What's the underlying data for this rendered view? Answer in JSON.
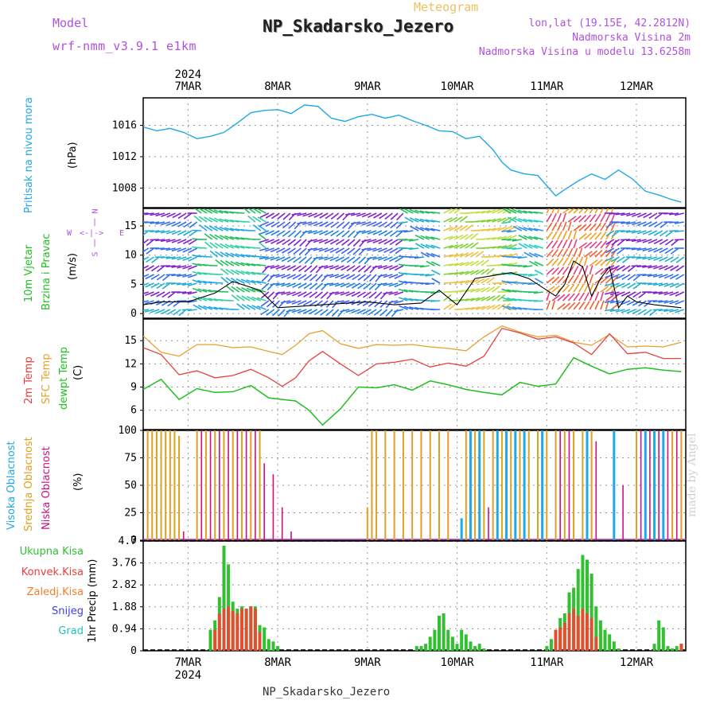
{
  "header": {
    "meteogram_label": "Meteogram",
    "title": "NP_Skadarsko_Jezero",
    "model_label": "Model",
    "model_name": "wrf-nmm_v3.9.1 e1km",
    "lonlat": "lon,lat (19.15E, 42.2812N)",
    "elevation": "Nadmorska Visina 2m",
    "model_elevation": "Nadmorska Visina u modelu 13.6258m",
    "credit": "made by Angel",
    "footer_title": "NP_Skadarsko_Jezero"
  },
  "time_axis": {
    "year": "2024",
    "days": [
      "7MAR",
      "8MAR",
      "9MAR",
      "10MAR",
      "11MAR",
      "12MAR"
    ]
  },
  "panel_labels": {
    "pressure_title": "Pritisak na nivou mora",
    "pressure_unit": "(hPa)",
    "wind_title1": "10m Vjetar",
    "wind_title2": "Brzina i Pravac",
    "wind_unit": "(m/s)",
    "compass_n": "N",
    "compass_e": "E",
    "compass_w": "W",
    "compass_s": "S",
    "temp_2m": "2m Temp",
    "temp_sfc": "SFC Temp",
    "temp_dew": "dewpt Temp",
    "temp_unit": "(C)",
    "cloud_high": "Visoka Oblacnost",
    "cloud_mid": "Srednja Oblacnost",
    "cloud_low": "Niska Oblacnost",
    "cloud_unit": "(%)",
    "precip_total": "Ukupna Kisa",
    "precip_conv": "Konvek.Kisa",
    "precip_frz": "Zaledj.Kisa",
    "precip_snow": "Snijeg",
    "precip_hail": "Grad",
    "precip_unit": "1hr Precip (mm)"
  },
  "colors": {
    "pressure": "#20a8e8",
    "temp2m": "#e84040",
    "sfc": "#e8a030",
    "dew": "#20c020",
    "high_cloud": "#20a8e8",
    "mid_cloud": "#e0a020",
    "low_cloud": "#d01080",
    "precip_total": "#30c030",
    "precip_conv": "#e05030",
    "purple_text": "#b050e0",
    "orange_title": "#f0c060"
  },
  "chart_data": [
    {
      "type": "line",
      "name": "pressure",
      "x_unit": "days from 7MAR 00",
      "ylim": [
        1005.5,
        1019.5
      ],
      "yticks": [
        1008,
        1012,
        1016
      ],
      "series": [
        {
          "name": "Pritisak na nivou mora",
          "x": [
            -0.5,
            -0.35,
            -0.2,
            -0.05,
            0.1,
            0.25,
            0.4,
            0.55,
            0.7,
            0.85,
            1.0,
            1.15,
            1.3,
            1.45,
            1.6,
            1.75,
            1.9,
            2.05,
            2.2,
            2.35,
            2.5,
            2.65,
            2.8,
            2.95,
            3.1,
            3.25,
            3.4,
            3.5,
            3.6,
            3.75,
            3.9,
            4.0,
            4.1,
            4.2,
            4.35,
            4.5,
            4.65,
            4.8,
            4.95,
            5.1,
            5.25,
            5.4,
            5.5
          ],
          "values": [
            1015.8,
            1015.3,
            1015.6,
            1015.1,
            1014.3,
            1014.6,
            1015.1,
            1016.3,
            1017.6,
            1017.9,
            1018.0,
            1017.5,
            1018.6,
            1018.4,
            1016.9,
            1016.5,
            1017.1,
            1017.4,
            1016.9,
            1017.3,
            1016.6,
            1016.0,
            1015.3,
            1015.2,
            1014.3,
            1014.6,
            1012.9,
            1011.3,
            1010.3,
            1009.8,
            1009.6,
            1008.3,
            1007.0,
            1007.8,
            1008.9,
            1009.8,
            1009.1,
            1010.3,
            1009.2,
            1007.6,
            1007.1,
            1006.5,
            1006.2
          ]
        }
      ]
    },
    {
      "type": "line",
      "name": "wind_speed",
      "ylim": [
        -0.8,
        18
      ],
      "yticks": [
        0,
        5,
        10,
        15
      ],
      "series": [
        {
          "name": "10m wind speed",
          "x": [
            -0.5,
            -0.3,
            0,
            0.3,
            0.5,
            0.8,
            1,
            1.5,
            2,
            2.3,
            2.6,
            2.8,
            3.0,
            3.2,
            3.4,
            3.6,
            3.8,
            4.0,
            4.1,
            4.2,
            4.3,
            4.4,
            4.5,
            4.6,
            4.7,
            4.8,
            4.9,
            5.0,
            5.2,
            5.5
          ],
          "values": [
            1.5,
            2,
            2,
            3.5,
            5.5,
            4,
            1,
            1.5,
            2,
            1.5,
            1.8,
            4,
            1.5,
            6,
            6.5,
            7,
            6,
            4,
            3,
            5,
            9,
            8,
            3,
            6,
            8,
            1,
            3,
            2,
            1.5,
            1
          ]
        }
      ]
    },
    {
      "type": "line",
      "name": "temperature",
      "ylim": [
        3.5,
        17.8
      ],
      "yticks": [
        6,
        9,
        12,
        15
      ],
      "series": [
        {
          "name": "2m Temp",
          "x": [
            -0.5,
            -0.3,
            -0.1,
            0.1,
            0.3,
            0.5,
            0.7,
            0.9,
            1.05,
            1.2,
            1.35,
            1.5,
            1.7,
            1.9,
            2.1,
            2.3,
            2.5,
            2.7,
            2.9,
            3.1,
            3.3,
            3.5,
            3.7,
            3.9,
            4.1,
            4.3,
            4.5,
            4.7,
            4.9,
            5.1,
            5.3,
            5.5
          ],
          "values": [
            14.1,
            13.2,
            10.6,
            11.1,
            10.2,
            10.5,
            11.3,
            10.2,
            9.1,
            10.2,
            12.4,
            13.6,
            12.0,
            10.5,
            12.0,
            12.2,
            12.6,
            11.6,
            12.1,
            11.7,
            13.0,
            16.6,
            16.0,
            15.2,
            15.5,
            14.7,
            13.2,
            15.9,
            13.3,
            13.5,
            12.7,
            12.7
          ]
        },
        {
          "name": "SFC Temp",
          "x": [
            -0.5,
            -0.3,
            -0.1,
            0.1,
            0.3,
            0.5,
            0.7,
            0.9,
            1.05,
            1.2,
            1.35,
            1.5,
            1.7,
            1.9,
            2.1,
            2.3,
            2.5,
            2.7,
            2.9,
            3.1,
            3.3,
            3.5,
            3.7,
            3.9,
            4.1,
            4.3,
            4.5,
            4.7,
            4.9,
            5.1,
            5.3,
            5.5
          ],
          "values": [
            15.6,
            13.5,
            13.0,
            14.5,
            14.5,
            14.1,
            14.2,
            13.6,
            13.2,
            14.4,
            15.9,
            16.3,
            14.6,
            14.0,
            14.5,
            14.4,
            14.5,
            14.2,
            14.0,
            13.7,
            15.5,
            16.9,
            16.1,
            15.5,
            15.7,
            14.8,
            14.4,
            15.8,
            14.2,
            14.3,
            14.2,
            14.8
          ]
        },
        {
          "name": "dewpt Temp",
          "x": [
            -0.5,
            -0.3,
            -0.1,
            0.1,
            0.3,
            0.5,
            0.7,
            0.9,
            1.05,
            1.2,
            1.35,
            1.5,
            1.7,
            1.9,
            2.1,
            2.3,
            2.5,
            2.7,
            2.9,
            3.1,
            3.3,
            3.5,
            3.7,
            3.9,
            4.1,
            4.3,
            4.5,
            4.7,
            4.9,
            5.1,
            5.3,
            5.5
          ],
          "values": [
            8.7,
            10.0,
            7.4,
            8.8,
            8.3,
            8.4,
            9.2,
            7.6,
            7.4,
            7.2,
            6.0,
            4.1,
            6.2,
            9.0,
            8.9,
            9.3,
            8.6,
            9.8,
            9.3,
            8.7,
            8.3,
            8.0,
            9.6,
            9.1,
            9.4,
            12.8,
            11.7,
            10.7,
            11.3,
            11.5,
            11.2,
            11.0
          ]
        }
      ]
    },
    {
      "type": "bar",
      "name": "cloud_cover",
      "ylim": [
        0,
        100
      ],
      "yticks": [
        0,
        25,
        50,
        75,
        100
      ],
      "series": [
        {
          "name": "Srednja Oblacnost",
          "x": [
            -0.45,
            -0.4,
            -0.35,
            -0.3,
            -0.25,
            -0.2,
            -0.15,
            -0.1,
            0.1,
            0.2,
            0.3,
            0.4,
            0.5,
            0.6,
            0.7,
            0.8,
            2.0,
            2.05,
            2.1,
            2.2,
            2.3,
            2.4,
            2.5,
            2.6,
            2.7,
            2.8,
            2.9,
            3.1,
            3.2,
            3.3,
            3.4,
            3.5,
            3.6,
            3.7,
            3.8,
            3.9,
            4.0,
            4.1,
            4.2,
            4.3,
            4.4,
            4.5,
            5.0,
            5.1,
            5.2,
            5.3,
            5.4,
            5.5
          ],
          "values": [
            100,
            100,
            100,
            100,
            100,
            100,
            100,
            95,
            100,
            100,
            100,
            100,
            100,
            100,
            100,
            100,
            30,
            100,
            100,
            100,
            100,
            100,
            100,
            100,
            100,
            100,
            100,
            100,
            100,
            100,
            100,
            100,
            100,
            100,
            100,
            100,
            100,
            100,
            100,
            100,
            100,
            100,
            100,
            100,
            100,
            100,
            100,
            100
          ]
        },
        {
          "name": "Niska Oblacnost",
          "x": [
            -0.05,
            0.15,
            0.25,
            0.35,
            0.45,
            0.55,
            0.65,
            0.75,
            0.85,
            0.95,
            1.05,
            1.15,
            3.35,
            4.15,
            4.25,
            4.55,
            4.85,
            5.05,
            5.15,
            5.25,
            5.35,
            5.45
          ],
          "values": [
            8,
            100,
            100,
            100,
            100,
            100,
            100,
            100,
            70,
            60,
            30,
            8,
            30,
            100,
            100,
            90,
            50,
            100,
            100,
            100,
            100,
            100
          ]
        },
        {
          "name": "Visoka Oblacnost",
          "x": [
            3.05,
            3.15,
            3.25,
            3.45,
            3.55,
            3.65,
            3.75,
            3.95,
            4.45,
            4.75,
            5.1,
            5.2,
            5.3
          ],
          "values": [
            20,
            100,
            100,
            100,
            100,
            100,
            100,
            100,
            100,
            100,
            100,
            100,
            100
          ]
        }
      ]
    },
    {
      "type": "bar",
      "name": "precipitation",
      "ylim": [
        0,
        4.7
      ],
      "yticks": [
        0,
        0.94,
        1.88,
        2.82,
        3.76,
        4.7
      ],
      "series": [
        {
          "name": "Ukupna Kisa",
          "x": [
            0.25,
            0.3,
            0.35,
            0.4,
            0.45,
            0.5,
            0.55,
            0.6,
            0.65,
            0.7,
            0.75,
            0.8,
            0.85,
            0.9,
            0.95,
            1.0,
            2.55,
            2.6,
            2.65,
            2.7,
            2.75,
            2.8,
            2.85,
            2.9,
            2.95,
            3.0,
            3.05,
            3.1,
            3.15,
            3.2,
            3.25,
            3.3,
            4.0,
            4.05,
            4.1,
            4.15,
            4.2,
            4.25,
            4.3,
            4.35,
            4.4,
            4.45,
            4.5,
            4.55,
            4.6,
            4.65,
            4.7,
            4.75,
            4.8,
            5.2,
            5.25,
            5.3,
            5.35,
            5.4,
            5.45,
            5.5
          ],
          "values": [
            0.9,
            1.3,
            2.3,
            4.5,
            3.7,
            2.1,
            1.8,
            1.9,
            1.8,
            1.9,
            1.9,
            1.1,
            1.0,
            0.5,
            0.4,
            0.2,
            0.2,
            0.2,
            0.3,
            0.6,
            0.9,
            1.5,
            1.6,
            0.9,
            0.6,
            0.3,
            0.9,
            0.7,
            0.4,
            0.2,
            0.3,
            0.1,
            0.2,
            0.5,
            0.8,
            1.4,
            1.6,
            2.5,
            2.7,
            3.5,
            4.1,
            3.9,
            3.3,
            1.9,
            1.3,
            0.9,
            0.7,
            0.4,
            0.1,
            0.3,
            1.3,
            1.0,
            0.2,
            0.1,
            0.2,
            0.3
          ]
        },
        {
          "name": "Konvek.Kisa",
          "x": [
            0.3,
            0.35,
            0.4,
            0.45,
            0.5,
            0.55,
            0.6,
            0.65,
            0.7,
            0.75,
            0.8,
            4.1,
            4.15,
            4.2,
            4.25,
            4.3,
            4.35,
            4.4,
            4.45,
            4.5,
            4.55,
            5.5
          ],
          "values": [
            0.9,
            1.6,
            1.8,
            1.9,
            1.7,
            1.6,
            1.8,
            1.8,
            1.9,
            1.8,
            0.8,
            0.9,
            1.0,
            1.2,
            1.6,
            1.8,
            1.5,
            1.8,
            1.6,
            1.4,
            0.6,
            0.3
          ]
        }
      ]
    }
  ]
}
